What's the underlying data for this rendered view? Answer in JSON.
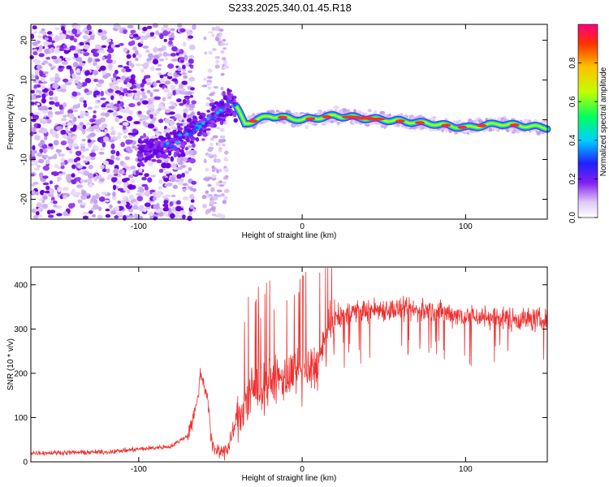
{
  "title": "S233.2025.340.01.45.R18",
  "chart_data": [
    {
      "type": "heatmap",
      "xlabel": "Height of straight line (km)",
      "ylabel": "Frequency (Hz)",
      "xlim": [
        -166,
        150
      ],
      "ylim": [
        -25,
        24
      ],
      "xticks": [
        -100,
        0,
        100
      ],
      "yticks": [
        -20,
        -10,
        0,
        10,
        20
      ],
      "colorbar": {
        "label": "Normalized spectral amplitude",
        "range": [
          0.0,
          1.0
        ],
        "ticks": [
          0.0,
          0.2,
          0.4,
          0.6,
          0.8
        ]
      },
      "ridge": {
        "description_points_x": [
          -130,
          -100,
          -80,
          -60,
          -45,
          -40,
          -35,
          -20,
          0,
          20,
          50,
          80,
          100,
          120,
          150
        ],
        "description_points_y": [
          -5,
          -8,
          -6,
          -1,
          4,
          3,
          -1,
          1,
          0,
          1,
          0,
          -1,
          -2,
          -1,
          -2
        ]
      }
    },
    {
      "type": "line",
      "xlabel": "Height of straight line (km)",
      "ylabel": "SNR (10 * v/v)",
      "xlim": [
        -166,
        150
      ],
      "ylim": [
        0,
        440
      ],
      "xticks": [
        -100,
        0,
        100
      ],
      "yticks": [
        0,
        100,
        200,
        300,
        400
      ],
      "color": "#f03030",
      "profile": {
        "x": [
          -166,
          -120,
          -80,
          -70,
          -65,
          -62,
          -58,
          -55,
          -50,
          -45,
          -40,
          -30,
          -20,
          -10,
          0,
          10,
          15,
          20,
          30,
          50,
          80,
          100,
          120,
          150
        ],
        "y": [
          20,
          22,
          35,
          60,
          120,
          200,
          150,
          30,
          25,
          30,
          100,
          160,
          180,
          190,
          200,
          220,
          280,
          320,
          340,
          345,
          340,
          330,
          325,
          320
        ]
      }
    }
  ],
  "colors": {
    "line": "#f03030",
    "background": "#ffffff"
  }
}
